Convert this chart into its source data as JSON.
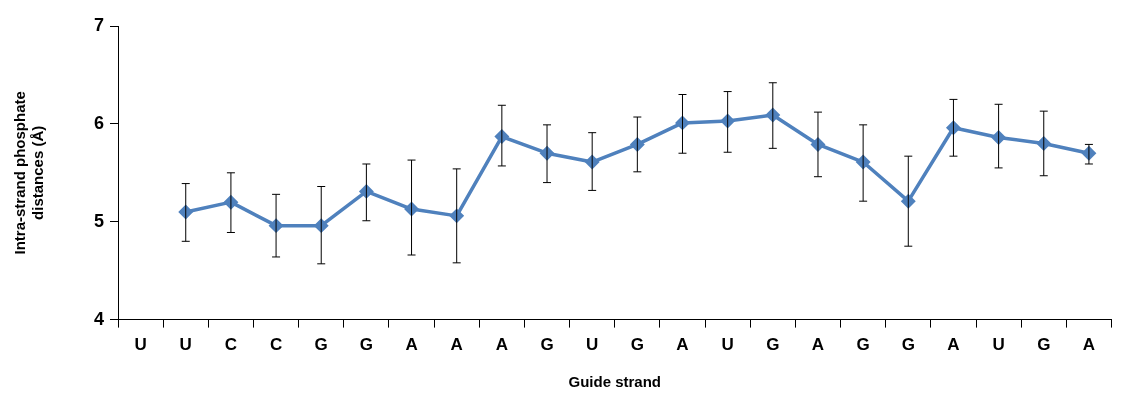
{
  "chart_data": {
    "type": "line",
    "xlabel": "Guide strand",
    "ylabel": "Intra-strand phosphate distances (Å)",
    "categories": [
      "U",
      "U",
      "C",
      "C",
      "G",
      "G",
      "A",
      "A",
      "A",
      "G",
      "U",
      "G",
      "A",
      "U",
      "G",
      "A",
      "G",
      "G",
      "A",
      "U",
      "G",
      "A"
    ],
    "series": [
      {
        "color": "#4f81bd",
        "values": [
          null,
          5.1,
          5.2,
          4.96,
          4.96,
          5.31,
          5.13,
          5.06,
          5.87,
          5.7,
          5.61,
          5.79,
          6.01,
          6.03,
          6.09,
          5.79,
          5.61,
          5.21,
          5.96,
          5.86,
          5.8,
          5.7
        ],
        "errors": [
          null,
          [
            4.8,
            5.39
          ],
          [
            4.89,
            5.5
          ],
          [
            4.64,
            5.28
          ],
          [
            4.57,
            5.36
          ],
          [
            5.01,
            5.59
          ],
          [
            4.66,
            5.63
          ],
          [
            4.58,
            5.54
          ],
          [
            5.57,
            6.19
          ],
          [
            5.4,
            5.99
          ],
          [
            5.32,
            5.91
          ],
          [
            5.51,
            6.07
          ],
          [
            5.7,
            6.3
          ],
          [
            5.71,
            6.33
          ],
          [
            5.75,
            6.42
          ],
          [
            5.46,
            6.12
          ],
          [
            5.21,
            5.99
          ],
          [
            4.75,
            5.67
          ],
          [
            5.67,
            6.25
          ],
          [
            5.55,
            6.2
          ],
          [
            5.47,
            6.13
          ],
          [
            5.59,
            5.79
          ]
        ]
      }
    ],
    "ylim": [
      4,
      7
    ],
    "yticks": [
      4,
      5,
      6,
      7
    ],
    "grid": false,
    "legend": false,
    "marker": "diamond",
    "line_style": "solid"
  }
}
